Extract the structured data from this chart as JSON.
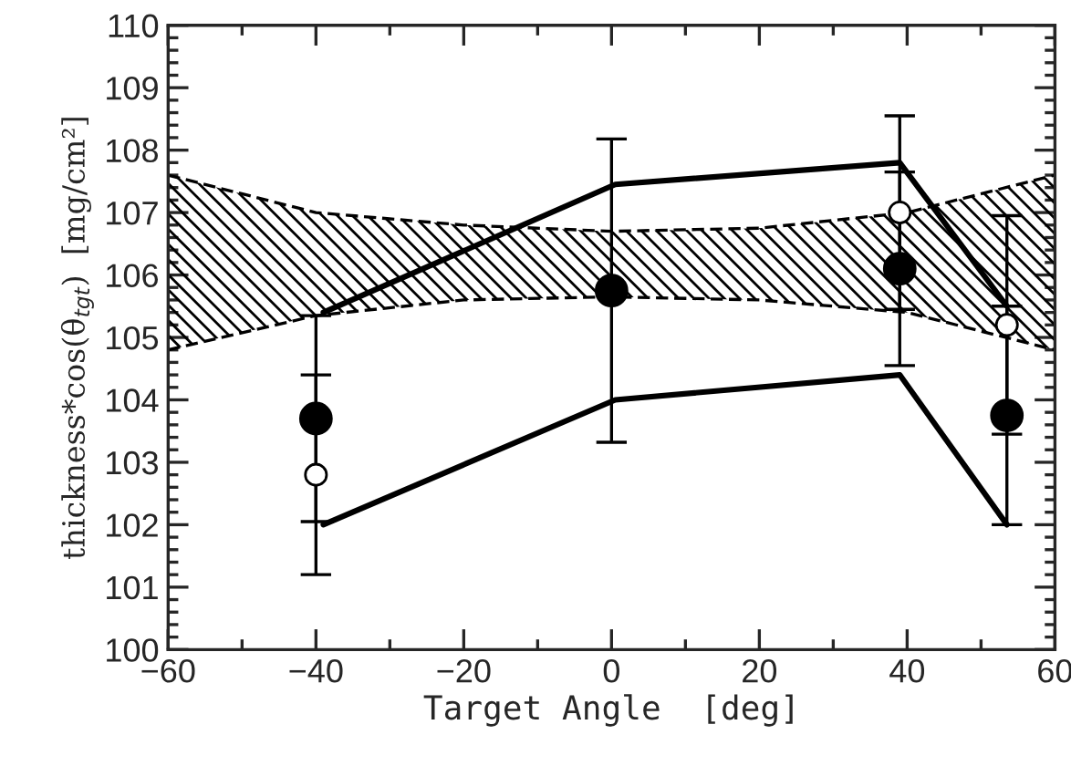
{
  "chart_data": {
    "type": "scatter",
    "xlabel": "Target Angle  [deg]",
    "ylabel": "thickness*cos(θ$_{tgt}$)  [mg/cm²]",
    "xlim": [
      -60,
      60
    ],
    "xticks": [
      {
        "value": -60,
        "label": "−60"
      },
      {
        "value": -40,
        "label": "−40"
      },
      {
        "value": -20,
        "label": "−20"
      },
      0,
      20,
      40,
      60
    ],
    "ylim": [
      100,
      110
    ],
    "yticks": [
      100,
      101,
      102,
      103,
      104,
      105,
      106,
      107,
      108,
      109,
      110
    ],
    "grid": false,
    "series": [
      {
        "type": "line",
        "color": "#000000",
        "x": [
          -60,
          -40,
          -20,
          0,
          20,
          40,
          60
        ],
        "values": [
          107.6,
          107.0,
          106.8,
          106.7,
          106.75,
          107.0,
          107.6
        ],
        "marker": "none",
        "line_style": "dashed"
      },
      {
        "type": "line",
        "color": "#000000",
        "x": [
          -60,
          -40,
          -20,
          0,
          20,
          40,
          60
        ],
        "values": [
          104.8,
          105.35,
          105.6,
          105.65,
          105.6,
          105.4,
          104.8
        ],
        "marker": "none",
        "line_style": "dashed"
      },
      {
        "type": "line",
        "color": "#000000",
        "x": [
          -39,
          0.5,
          39,
          53.5
        ],
        "values": [
          105.4,
          107.45,
          107.8,
          105.5
        ],
        "marker": "none",
        "line_style": "solid"
      },
      {
        "type": "line",
        "color": "#000000",
        "x": [
          -39,
          0.5,
          39,
          53.5
        ],
        "values": [
          102.0,
          104.0,
          104.4,
          102.0
        ],
        "marker": "none",
        "line_style": "solid"
      },
      {
        "color": "#ffffff",
        "x": [
          -40,
          0,
          39,
          53.5
        ],
        "values": [
          102.8,
          null,
          107.0,
          105.2
        ],
        "errors": [
          1.6,
          null,
          1.55,
          1.75
        ],
        "marker": "circle"
      },
      {
        "color": "#000000",
        "x": [
          -40,
          0,
          39,
          53.5
        ],
        "values": [
          103.7,
          105.75,
          106.1,
          103.75
        ],
        "errors": [
          1.65,
          2.43,
          1.55,
          1.75
        ],
        "marker": "circle"
      }
    ]
  }
}
